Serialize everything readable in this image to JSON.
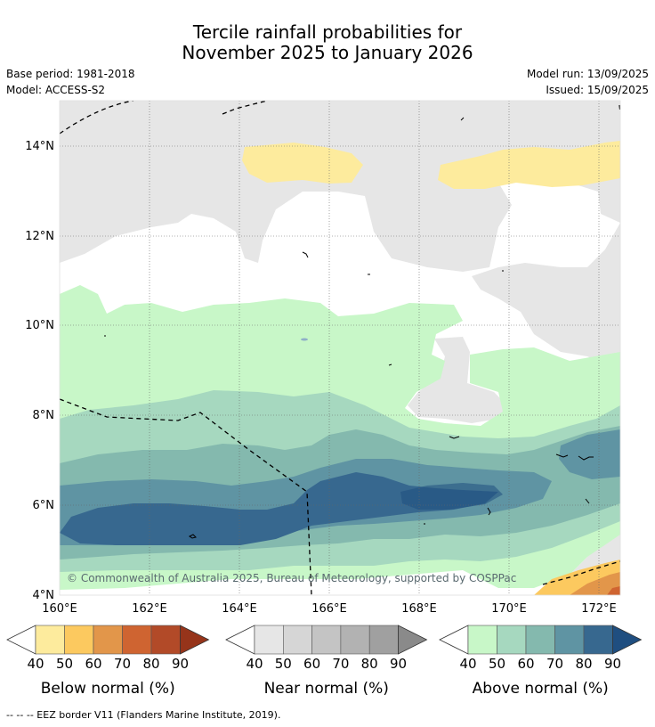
{
  "title_line1": "Tercile rainfall probabilities for",
  "title_line2": "November 2025 to January 2026",
  "base_period": "Base period: 1981-2018",
  "model": "Model: ACCESS-S2",
  "model_run": "Model run: 13/09/2025",
  "issued": "Issued: 15/09/2025",
  "copyright": "© Commonwealth of Australia 2025, Bureau of Meteorology, supported by COSPPac",
  "axes": {
    "lat_labels": [
      "14°N",
      "12°N",
      "10°N",
      "8°N",
      "6°N",
      "4°N"
    ],
    "lon_labels": [
      "160°E",
      "162°E",
      "164°E",
      "166°E",
      "168°E",
      "170°E",
      "172°E"
    ]
  },
  "colorbars": [
    {
      "label": "Below normal (%)",
      "ticks": [
        "40",
        "50",
        "60",
        "70",
        "80",
        "90"
      ],
      "colors": [
        "#fdeb9d",
        "#fcc95f",
        "#e2964a",
        "#cf6431",
        "#b24a28",
        "#96341a"
      ]
    },
    {
      "label": "Near normal (%)",
      "ticks": [
        "40",
        "50",
        "60",
        "70",
        "80",
        "90"
      ],
      "colors": [
        "#e6e6e6",
        "#d6d6d6",
        "#c4c4c4",
        "#b2b2b2",
        "#a0a0a0",
        "#8a8a8a"
      ]
    },
    {
      "label": "Above normal (%)",
      "ticks": [
        "40",
        "50",
        "60",
        "70",
        "80",
        "90"
      ],
      "colors": [
        "#c8f7c8",
        "#a6d8bf",
        "#84b9ae",
        "#5f94a3",
        "#37688f",
        "#1f4e80"
      ]
    }
  ],
  "footnote": "--  --  -- EEZ border V11 (Flanders Marine Institute, 2019)."
}
